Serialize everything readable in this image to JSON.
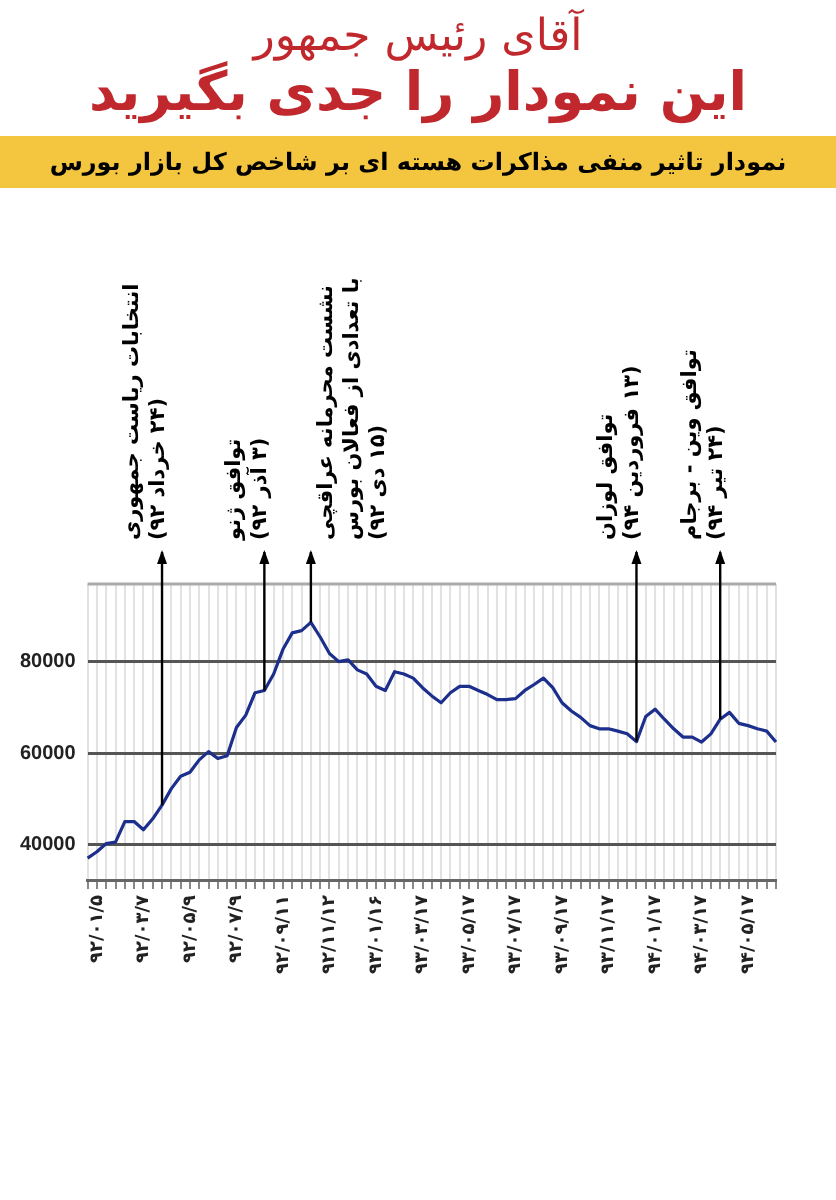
{
  "chart_data": {
    "type": "line",
    "title": "آقای رئیس جمهور\nاین نمودار را جدی بگیرید",
    "subtitle": "نمودار تاثیر منفی مذاکرات هسته ای بر شاخص کل بازار بورس",
    "categories": [
      null,
      "۹۲/۰۱/۵",
      null,
      null,
      null,
      null,
      "۹۲/۰۳/۷",
      null,
      null,
      null,
      null,
      "۹۲/۰۵/۹",
      null,
      null,
      null,
      null,
      "۹۲/۰۷/۹",
      null,
      null,
      null,
      null,
      "۹۲/۰۹/۱۱",
      null,
      null,
      null,
      null,
      "۹۲/۱۱/۱۲",
      null,
      null,
      null,
      null,
      "۹۳/۰۱/۱۶",
      null,
      null,
      null,
      null,
      "۹۳/۰۳/۱۷",
      null,
      null,
      null,
      null,
      "۹۳/۰۵/۱۷",
      null,
      null,
      null,
      null,
      "۹۳/۰۷/۱۷",
      null,
      null,
      null,
      null,
      "۹۳/۰۹/۱۷",
      null,
      null,
      null,
      null,
      "۹۳/۱۱/۱۷",
      null,
      null,
      null,
      null,
      "۹۴/۰۱/۱۷",
      null,
      null,
      null,
      null,
      "۹۴/۰۳/۱۷",
      null,
      null,
      null,
      null,
      "۹۴/۰۵/۱۷",
      null,
      null,
      null
    ],
    "values": [
      37000,
      38400,
      40200,
      40500,
      45000,
      45000,
      43200,
      45600,
      48600,
      52200,
      54900,
      55800,
      58500,
      60300,
      58800,
      59400,
      65600,
      68300,
      73200,
      73700,
      77300,
      82700,
      86300,
      86800,
      88600,
      85400,
      81800,
      80000,
      80400,
      78200,
      77300,
      74600,
      73700,
      77800,
      77300,
      76400,
      74300,
      72500,
      71000,
      73200,
      74600,
      74600,
      73700,
      72800,
      71700,
      71700,
      71900,
      73700,
      75000,
      76400,
      74300,
      71000,
      69200,
      67800,
      66000,
      65300,
      65300,
      64800,
      64200,
      62500,
      68000,
      69600,
      67400,
      65300,
      63500,
      63500,
      62400,
      64200,
      67400,
      68900,
      66500,
      66000,
      65300,
      64800,
      62400
    ],
    "color": "#1c2f8c",
    "ylim": [
      32000,
      97000
    ],
    "yticks": [
      40000,
      60000,
      80000
    ],
    "grid": true,
    "marker": "none",
    "line_style": "solid",
    "annotations": [
      "انتخابات ریاست جمهوری\n(۲۴ خرداد ۹۲)",
      "توافق ژنو\n(۳ آذر ۹۲)",
      "نشست محرمانه عراقچی\nبا تعدادی از فعالان بورس\n(۱۵ دی ۹۲)",
      "توافق لوزان\n(۱۳ فروردین ۹۴)",
      "توافق وین - برجام\n(۲۴ تیر ۹۴)"
    ]
  }
}
